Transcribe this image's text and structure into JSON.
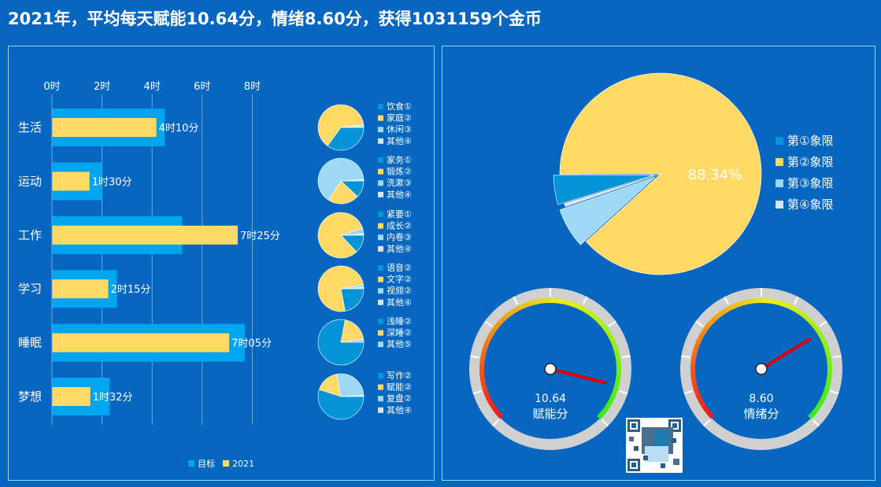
{
  "title": "2021年，平均每天赋能10.64分，情绪8.60分，获得1031159个金币",
  "colors": {
    "background": "#0766C0",
    "target_bar": "#00A5EF",
    "actual_bar": "#FFD966",
    "q1": "#0595D6",
    "q2": "#FFD966",
    "q3": "#9DD8F7",
    "q4": "#D6E4F0",
    "gauge_needle": "#E00000"
  },
  "chart_data": [
    {
      "type": "bar",
      "orientation": "horizontal",
      "categories": [
        "生活",
        "运动",
        "工作",
        "学习",
        "睡眠",
        "梦想"
      ],
      "x_ticks": [
        "0时",
        "2时",
        "4时",
        "6时",
        "8时"
      ],
      "xlim": [
        0,
        8.5
      ],
      "grid": true,
      "legend_position": "bottom",
      "series": [
        {
          "name": "目标",
          "values": [
            4.5,
            2.0,
            5.2,
            2.6,
            7.7,
            2.3
          ]
        },
        {
          "name": "2021",
          "values": [
            4.17,
            1.5,
            7.42,
            2.25,
            7.08,
            1.53
          ]
        }
      ],
      "data_labels": [
        "4时10分",
        "1时30分",
        "7时25分",
        "2时15分",
        "7时05分",
        "1时32分"
      ]
    },
    {
      "type": "pie",
      "slices": [
        {
          "label": "饮食①",
          "value": 0.35
        },
        {
          "label": "家庭②",
          "value": 0.63
        },
        {
          "label": "休闲③",
          "value": 0.01
        },
        {
          "label": "其他④",
          "value": 0.01
        }
      ]
    },
    {
      "type": "pie",
      "slices": [
        {
          "label": "家务①",
          "value": 0.12
        },
        {
          "label": "锻炼②",
          "value": 0.22
        },
        {
          "label": "洗漱③",
          "value": 0.65
        },
        {
          "label": "其他④",
          "value": 0.01
        }
      ]
    },
    {
      "type": "pie",
      "slices": [
        {
          "label": "紧要①",
          "value": 0.13
        },
        {
          "label": "成长②",
          "value": 0.82
        },
        {
          "label": "内卷③",
          "value": 0.04
        },
        {
          "label": "其他④",
          "value": 0.01
        }
      ]
    },
    {
      "type": "pie",
      "slices": [
        {
          "label": "语音②",
          "value": 0.22
        },
        {
          "label": "文字②",
          "value": 0.75
        },
        {
          "label": "视频②",
          "value": 0.02
        },
        {
          "label": "其他④",
          "value": 0.01
        }
      ]
    },
    {
      "type": "pie",
      "slices": [
        {
          "label": "浅睡②",
          "value": 0.78
        },
        {
          "label": "深睡②",
          "value": 0.2
        },
        {
          "label": "其他⑤",
          "value": 0.02
        }
      ]
    },
    {
      "type": "pie",
      "slices": [
        {
          "label": "写作②",
          "value": 0.55
        },
        {
          "label": "赋能②",
          "value": 0.17
        },
        {
          "label": "复盘②",
          "value": 0.27
        },
        {
          "label": "其他④",
          "value": 0.01
        }
      ]
    },
    {
      "type": "pie",
      "slices": [
        {
          "label": "第①象限",
          "value": 4.7
        },
        {
          "label": "第②象限",
          "value": 88.34
        },
        {
          "label": "第③象限",
          "value": 6.46
        },
        {
          "label": "第④象限",
          "value": 0.5
        }
      ],
      "data_label": "88.34%",
      "legend_position": "right"
    },
    {
      "type": "gauge",
      "value": 10.64,
      "value_label": "10.64",
      "label": "赋能分"
    },
    {
      "type": "gauge",
      "value": 8.6,
      "value_label": "8.60",
      "label": "情绪分"
    }
  ]
}
